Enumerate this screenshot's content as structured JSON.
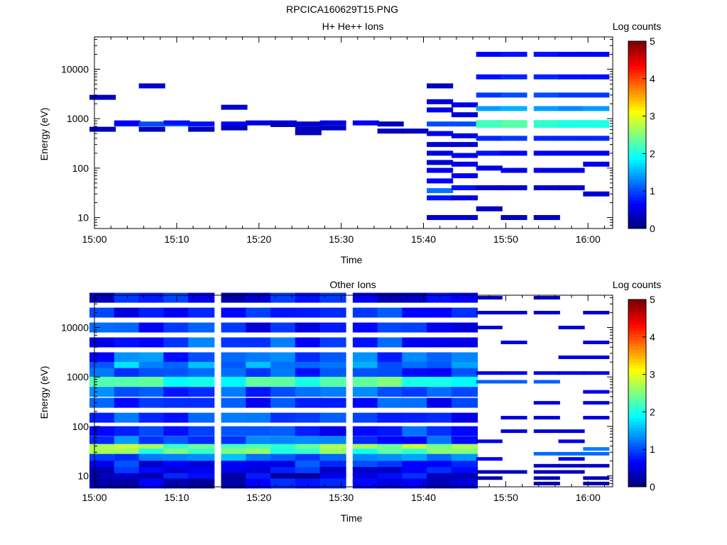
{
  "figure_title": "RPCICA160629T15.PNG",
  "chart_data": [
    {
      "type": "heatmap",
      "title": "H+ He++ Ions",
      "xlabel": "Time",
      "ylabel": "Energy (eV)",
      "yscale": "log",
      "ylim": [
        6,
        45000
      ],
      "xlim": [
        "15:00",
        "16:03"
      ],
      "x_ticks": [
        "15:00",
        "15:10",
        "15:20",
        "15:30",
        "15:40",
        "15:50",
        "16:00"
      ],
      "y_ticks": [
        "10",
        "100",
        "1000",
        "10000"
      ],
      "colorbar": {
        "label": "Log counts",
        "min": 0,
        "max": 5,
        "ticks": [
          "0",
          "1",
          "2",
          "3",
          "4",
          "5"
        ]
      },
      "time_bins": [
        "15:01",
        "15:04",
        "15:07",
        "15:10",
        "15:13",
        "15:17",
        "15:20",
        "15:23",
        "15:26",
        "15:29",
        "15:33",
        "15:36",
        "15:39",
        "15:42",
        "15:45",
        "15:48",
        "15:51",
        "15:55",
        "15:58",
        "16:01"
      ],
      "columns": [
        {
          "time": "15:01",
          "cells": [
            [
              2700,
              0.3
            ],
            [
              610,
              0.3
            ]
          ]
        },
        {
          "time": "15:04",
          "cells": [
            [
              780,
              0.8
            ],
            [
              820,
              0.6
            ]
          ]
        },
        {
          "time": "15:07",
          "cells": [
            [
              4600,
              0.4
            ],
            [
              780,
              1.0
            ],
            [
              610,
              0.3
            ]
          ]
        },
        {
          "time": "15:10",
          "cells": [
            [
              780,
              1.3
            ],
            [
              820,
              0.7
            ]
          ]
        },
        {
          "time": "15:13",
          "cells": [
            [
              780,
              0.7
            ],
            [
              610,
              0.3
            ]
          ]
        },
        {
          "time": "15:17",
          "cells": [
            [
              1700,
              0.4
            ],
            [
              780,
              0.6
            ],
            [
              650,
              0.3
            ]
          ]
        },
        {
          "time": "15:20",
          "cells": [
            [
              820,
              0.5
            ]
          ]
        },
        {
          "time": "15:23",
          "cells": [
            [
              820,
              0.5
            ],
            [
              760,
              0.3
            ]
          ]
        },
        {
          "time": "15:26",
          "cells": [
            [
              780,
              0.4
            ],
            [
              620,
              0.3
            ],
            [
              520,
              0.3
            ]
          ]
        },
        {
          "time": "15:29",
          "cells": [
            [
              820,
              0.5
            ],
            [
              650,
              0.3
            ]
          ]
        },
        {
          "time": "15:33",
          "cells": [
            [
              820,
              0.6
            ]
          ]
        },
        {
          "time": "15:36",
          "cells": [
            [
              780,
              0.3
            ],
            [
              560,
              0.3
            ]
          ]
        },
        {
          "time": "15:39",
          "cells": [
            [
              560,
              0.3
            ]
          ]
        },
        {
          "time": "15:42",
          "cells": [
            [
              4600,
              0.3
            ],
            [
              2200,
              0.4
            ],
            [
              1500,
              0.5
            ],
            [
              780,
              1.0
            ],
            [
              500,
              0.5
            ],
            [
              300,
              0.4
            ],
            [
              200,
              0.5
            ],
            [
              130,
              0.4
            ],
            [
              90,
              0.5
            ],
            [
              55,
              0.6
            ],
            [
              35,
              1.2
            ],
            [
              25,
              0.7
            ],
            [
              10,
              0.4
            ]
          ]
        },
        {
          "time": "15:45",
          "cells": [
            [
              1900,
              0.5
            ],
            [
              1200,
              0.4
            ],
            [
              780,
              1.0
            ],
            [
              450,
              0.5
            ],
            [
              300,
              0.4
            ],
            [
              180,
              0.6
            ],
            [
              120,
              0.5
            ],
            [
              70,
              0.6
            ],
            [
              40,
              0.7
            ],
            [
              25,
              0.5
            ],
            [
              10,
              0.4
            ]
          ]
        },
        {
          "time": "15:48",
          "cells": [
            [
              20000,
              0.6
            ],
            [
              7000,
              0.7
            ],
            [
              3000,
              0.9
            ],
            [
              1600,
              1.4
            ],
            [
              780,
              2.2
            ],
            [
              400,
              0.8
            ],
            [
              200,
              0.7
            ],
            [
              100,
              0.5
            ],
            [
              40,
              0.4
            ],
            [
              15,
              0.3
            ]
          ]
        },
        {
          "time": "15:51",
          "cells": [
            [
              20000,
              0.7
            ],
            [
              7000,
              0.8
            ],
            [
              3000,
              1.0
            ],
            [
              1600,
              1.5
            ],
            [
              780,
              2.3
            ],
            [
              400,
              0.9
            ],
            [
              200,
              0.6
            ],
            [
              90,
              0.5
            ],
            [
              40,
              0.4
            ],
            [
              10,
              0.3
            ]
          ]
        },
        {
          "time": "15:55",
          "cells": [
            [
              20000,
              0.7
            ],
            [
              7000,
              0.8
            ],
            [
              3000,
              1.0
            ],
            [
              1600,
              1.4
            ],
            [
              780,
              2.1
            ],
            [
              400,
              0.8
            ],
            [
              200,
              0.6
            ],
            [
              90,
              0.5
            ],
            [
              40,
              0.4
            ],
            [
              10,
              0.3
            ]
          ]
        },
        {
          "time": "15:58",
          "cells": [
            [
              20000,
              0.6
            ],
            [
              7000,
              0.7
            ],
            [
              3000,
              0.9
            ],
            [
              1600,
              1.3
            ],
            [
              780,
              2.0
            ],
            [
              400,
              0.8
            ],
            [
              200,
              0.6
            ],
            [
              90,
              0.5
            ],
            [
              40,
              0.4
            ]
          ]
        },
        {
          "time": "16:01",
          "cells": [
            [
              20000,
              0.6
            ],
            [
              7000,
              0.7
            ],
            [
              3000,
              0.9
            ],
            [
              1600,
              1.4
            ],
            [
              780,
              2.0
            ],
            [
              400,
              0.8
            ],
            [
              200,
              0.6
            ],
            [
              120,
              0.5
            ],
            [
              30,
              0.4
            ]
          ]
        }
      ]
    },
    {
      "type": "heatmap",
      "title": "Other Ions",
      "xlabel": "Time",
      "ylabel": "Energy (eV)",
      "yscale": "log",
      "ylim": [
        6,
        45000
      ],
      "xlim": [
        "15:00",
        "16:03"
      ],
      "x_ticks": [
        "15:00",
        "15:10",
        "15:20",
        "15:30",
        "15:40",
        "15:50",
        "16:00"
      ],
      "y_ticks": [
        "10",
        "100",
        "1000",
        "10000"
      ],
      "colorbar": {
        "label": "Log counts",
        "min": 0,
        "max": 5,
        "ticks": [
          "0",
          "1",
          "2",
          "3",
          "4",
          "5"
        ]
      },
      "profile": [
        [
          40000,
          0.6
        ],
        [
          20000,
          0.7
        ],
        [
          10000,
          0.8
        ],
        [
          5000,
          0.9
        ],
        [
          2500,
          1.0
        ],
        [
          1600,
          1.4
        ],
        [
          1200,
          1.0
        ],
        [
          800,
          2.2
        ],
        [
          500,
          1.0
        ],
        [
          300,
          0.9
        ],
        [
          150,
          0.9
        ],
        [
          80,
          0.9
        ],
        [
          50,
          1.0
        ],
        [
          35,
          2.5
        ],
        [
          28,
          2.3
        ],
        [
          22,
          1.2
        ],
        [
          16,
          0.7
        ],
        [
          12,
          0.6
        ],
        [
          9,
          0.5
        ],
        [
          7,
          0.5
        ]
      ],
      "active_bins": [
        "15:01",
        "15:04",
        "15:07",
        "15:10",
        "15:13",
        "15:17",
        "15:20",
        "15:23",
        "15:26",
        "15:29",
        "15:33",
        "15:36",
        "15:39",
        "15:42",
        "15:45"
      ],
      "sparse_bins": [
        "15:48",
        "15:51",
        "15:55",
        "15:58",
        "16:01"
      ]
    }
  ]
}
